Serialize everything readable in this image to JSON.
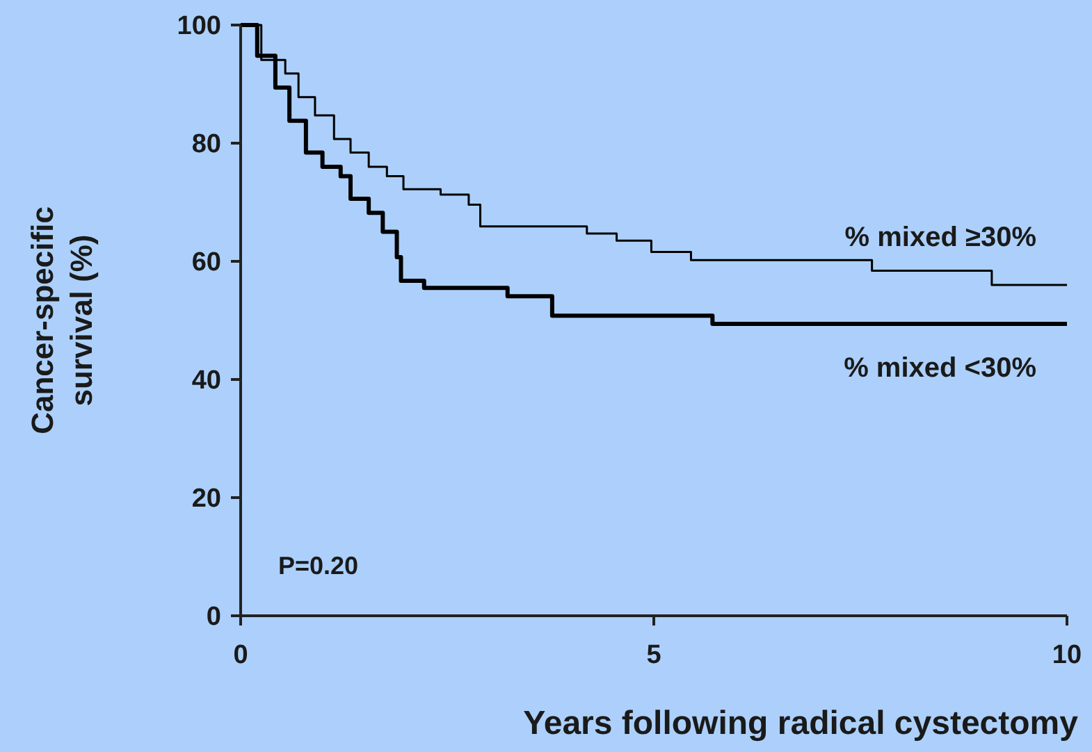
{
  "chart_data": {
    "type": "step",
    "xlabel": "Years following radical cystectomy",
    "ylabel": "Cancer-specific survival (%)",
    "xlim": [
      0,
      10
    ],
    "xticks": [
      0,
      5,
      10
    ],
    "ylim": [
      0,
      100
    ],
    "yticks": [
      0,
      20,
      40,
      60,
      80,
      100
    ],
    "grid": false,
    "annotations": [
      "P=0.20"
    ],
    "series": [
      {
        "name": "% mixed ≥30%",
        "color": "#000000",
        "x": [
          0,
          0.25,
          0.54,
          0.7,
          0.9,
          1.13,
          1.33,
          1.55,
          1.77,
          1.97,
          2.42,
          2.76,
          2.9,
          4.19,
          4.55,
          4.97,
          5.45,
          7.64,
          9.09,
          10
        ],
        "values": [
          100,
          94.1,
          91.8,
          87.8,
          84.7,
          80.7,
          78.4,
          76,
          74.4,
          72.2,
          71.3,
          69.6,
          65.9,
          64.7,
          63.5,
          61.6,
          60.2,
          58.4,
          56,
          56
        ]
      },
      {
        "name": "% mixed <30%",
        "color": "#000000",
        "x": [
          0,
          0.2,
          0.42,
          0.59,
          0.79,
          0.99,
          1.21,
          1.33,
          1.55,
          1.72,
          1.89,
          1.94,
          2.22,
          3.23,
          3.77,
          5.71,
          10
        ],
        "values": [
          100,
          94.8,
          89.4,
          83.8,
          78.4,
          76,
          74.4,
          70.6,
          68.2,
          65,
          60.7,
          56.7,
          55.5,
          54.1,
          50.8,
          49.4,
          49.4
        ]
      }
    ]
  }
}
